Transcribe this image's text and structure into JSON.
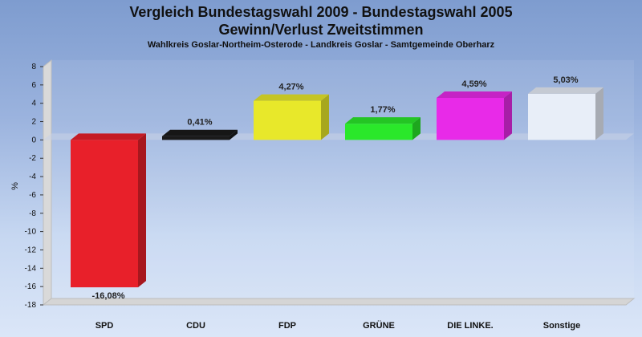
{
  "chart_data": {
    "type": "bar",
    "title_line1": "Vergleich Bundestagswahl 2009 - Bundestagswahl 2005",
    "title_line2": "Gewinn/Verlust Zweitstimmen",
    "subtitle": "Wahlkreis Goslar-Northeim-Osterode - Landkreis Goslar - Samtgemeinde Oberharz",
    "ylabel": "%",
    "xlabel": "",
    "ylim": [
      -18,
      8
    ],
    "yticks": [
      "8",
      "6",
      "4",
      "2",
      "0",
      "-2",
      "-4",
      "-6",
      "-8",
      "-10",
      "-12",
      "-14",
      "-16",
      "-18"
    ],
    "grid": false,
    "categories": [
      "SPD",
      "CDU",
      "FDP",
      "GRÜNE",
      "DIE LINKE.",
      "Sonstige"
    ],
    "values": [
      -16.08,
      0.41,
      4.27,
      1.77,
      4.59,
      5.03
    ],
    "value_labels": [
      "-16,08%",
      "0,41%",
      "4,27%",
      "1,77%",
      "4,59%",
      "5,03%"
    ],
    "colors": [
      "#e8202a",
      "#1a1a1a",
      "#e8e82a",
      "#2ae82a",
      "#e82ae8",
      "#e8eef8"
    ]
  }
}
